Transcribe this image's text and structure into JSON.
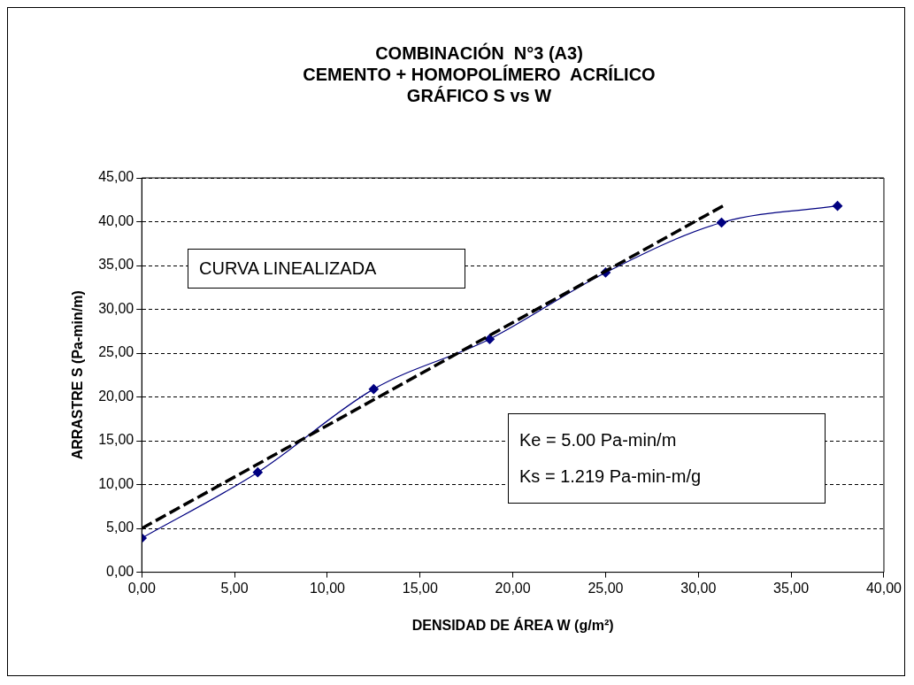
{
  "chart_data": {
    "type": "line",
    "title": "COMBINACIÓN  N°3 (A3)\nCEMENTO + HOMOPOLÍMERO  ACRÍLICO\nGRÁFICO S vs W",
    "xlabel": "DENSIDAD DE ÁREA W (g/m²)",
    "ylabel": "ARRASTRE S (Pa-min/m)",
    "x": [
      0,
      6.25,
      12.5,
      18.75,
      25,
      31.25,
      37.5
    ],
    "series": [
      {
        "color": "#000080",
        "values": [
          3.9,
          11.4,
          20.9,
          26.6,
          34.2,
          39.9,
          41.8
        ],
        "marker": "diamond",
        "line_style": "solid"
      },
      {
        "type": "line",
        "color": "#000000",
        "x": [
          0,
          31.5
        ],
        "values": [
          5,
          42
        ],
        "marker": "none",
        "line_style": "dashed"
      }
    ],
    "xlim": [
      0,
      40
    ],
    "xticks": [
      {
        "value": 0,
        "label": "0,00"
      },
      {
        "value": 5,
        "label": "5,00"
      },
      {
        "value": 10,
        "label": "10,00"
      },
      {
        "value": 15,
        "label": "15,00"
      },
      {
        "value": 20,
        "label": "20,00"
      },
      {
        "value": 25,
        "label": "25,00"
      },
      {
        "value": 30,
        "label": "30,00"
      },
      {
        "value": 35,
        "label": "35,00"
      },
      {
        "value": 40,
        "label": "40,00"
      }
    ],
    "ylim": [
      0,
      45
    ],
    "yticks": [
      {
        "value": 0,
        "label": "0,00"
      },
      {
        "value": 5,
        "label": "5,00"
      },
      {
        "value": 10,
        "label": "10,00"
      },
      {
        "value": 15,
        "label": "15,00"
      },
      {
        "value": 20,
        "label": "20,00"
      },
      {
        "value": 25,
        "label": "25,00"
      },
      {
        "value": 30,
        "label": "30,00"
      },
      {
        "value": 35,
        "label": "35,00"
      },
      {
        "value": 40,
        "label": "40,00"
      },
      {
        "value": 45,
        "label": "45,00"
      }
    ],
    "grid": "y",
    "legend": false,
    "annotations": [
      "CURVA LINEALIZADA",
      "Ke = 5.00 Pa-min/m\nKs = 1.219 Pa-min-m/g"
    ]
  }
}
